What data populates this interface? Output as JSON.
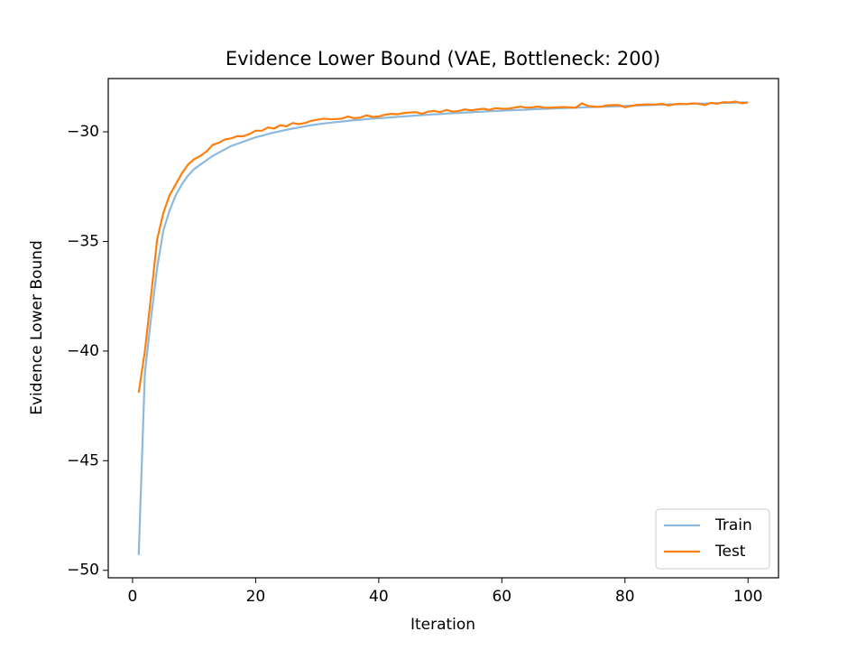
{
  "chart_data": {
    "type": "line",
    "title": "Evidence Lower Bound (VAE, Bottleneck: 200)",
    "x_label": "Iteration",
    "y_label": "Evidence Lower Bound",
    "x": [
      1,
      2,
      3,
      4,
      5,
      6,
      7,
      8,
      9,
      10,
      11,
      12,
      13,
      14,
      15,
      16,
      17,
      18,
      19,
      20,
      21,
      22,
      23,
      24,
      25,
      26,
      27,
      28,
      29,
      30,
      31,
      32,
      33,
      34,
      35,
      36,
      37,
      38,
      39,
      40,
      41,
      42,
      43,
      44,
      45,
      46,
      47,
      48,
      49,
      50,
      51,
      52,
      53,
      54,
      55,
      56,
      57,
      58,
      59,
      60,
      61,
      62,
      63,
      64,
      65,
      66,
      67,
      68,
      69,
      70,
      71,
      72,
      73,
      74,
      75,
      76,
      77,
      78,
      79,
      80,
      81,
      82,
      83,
      84,
      85,
      86,
      87,
      88,
      89,
      90,
      91,
      92,
      93,
      94,
      95,
      96,
      97,
      98,
      99,
      100
    ],
    "series": [
      {
        "name": "Train",
        "color": "#8cb9dc",
        "values": [
          -49.3,
          -41.0,
          -38.5,
          -36.2,
          -34.5,
          -33.6,
          -32.9,
          -32.4,
          -32.0,
          -31.7,
          -31.5,
          -31.3,
          -31.1,
          -30.95,
          -30.8,
          -30.65,
          -30.55,
          -30.45,
          -30.35,
          -30.25,
          -30.18,
          -30.1,
          -30.03,
          -29.97,
          -29.91,
          -29.85,
          -29.8,
          -29.75,
          -29.7,
          -29.66,
          -29.62,
          -29.59,
          -29.56,
          -29.53,
          -29.5,
          -29.47,
          -29.45,
          -29.42,
          -29.4,
          -29.38,
          -29.36,
          -29.34,
          -29.32,
          -29.3,
          -29.28,
          -29.26,
          -29.24,
          -29.22,
          -29.2,
          -29.19,
          -29.17,
          -29.15,
          -29.14,
          -29.12,
          -29.11,
          -29.09,
          -29.08,
          -29.06,
          -29.05,
          -29.04,
          -29.02,
          -29.01,
          -29.0,
          -28.99,
          -28.97,
          -28.96,
          -28.95,
          -28.94,
          -28.93,
          -28.92,
          -28.91,
          -28.9,
          -28.89,
          -28.88,
          -28.87,
          -28.86,
          -28.85,
          -28.84,
          -28.83,
          -28.82,
          -28.81,
          -28.8,
          -28.79,
          -28.78,
          -28.77,
          -28.76,
          -28.75,
          -28.75,
          -28.74,
          -28.73,
          -28.72,
          -28.71,
          -28.71,
          -28.7,
          -28.69,
          -28.68,
          -28.68,
          -28.67,
          -28.66,
          -28.66
        ]
      },
      {
        "name": "Test",
        "color": "#ff7f0e",
        "values": [
          -41.9,
          -40.0,
          -37.5,
          -34.9,
          -33.7,
          -32.9,
          -32.4,
          -31.9,
          -31.5,
          -31.25,
          -31.1,
          -30.9,
          -30.6,
          -30.5,
          -30.35,
          -30.3,
          -30.2,
          -30.2,
          -30.1,
          -29.95,
          -29.95,
          -29.8,
          -29.85,
          -29.7,
          -29.75,
          -29.6,
          -29.65,
          -29.6,
          -29.5,
          -29.45,
          -29.4,
          -29.42,
          -29.42,
          -29.4,
          -29.3,
          -29.38,
          -29.35,
          -29.25,
          -29.32,
          -29.3,
          -29.22,
          -29.18,
          -29.2,
          -29.15,
          -29.12,
          -29.1,
          -29.18,
          -29.08,
          -29.05,
          -29.1,
          -29.0,
          -29.08,
          -29.05,
          -28.98,
          -29.02,
          -28.98,
          -28.95,
          -29.0,
          -28.92,
          -28.95,
          -28.95,
          -28.9,
          -28.85,
          -28.9,
          -28.88,
          -28.85,
          -28.9,
          -28.9,
          -28.88,
          -28.87,
          -28.88,
          -28.9,
          -28.7,
          -28.82,
          -28.85,
          -28.86,
          -28.8,
          -28.78,
          -28.78,
          -28.88,
          -28.82,
          -28.77,
          -28.76,
          -28.75,
          -28.76,
          -28.72,
          -28.8,
          -28.74,
          -28.72,
          -28.74,
          -28.7,
          -28.72,
          -28.78,
          -28.68,
          -28.72,
          -28.65,
          -28.66,
          -28.62,
          -28.7,
          -28.66
        ]
      }
    ],
    "xlim": [
      -3.95,
      104.95
    ],
    "ylim": [
      -50.34,
      -27.57
    ],
    "xticks": [
      0,
      20,
      40,
      60,
      80,
      100
    ],
    "yticks": [
      {
        "value": -50,
        "label": "−50"
      },
      {
        "value": -45,
        "label": "−45"
      },
      {
        "value": -40,
        "label": "−40"
      },
      {
        "value": -35,
        "label": "−35"
      },
      {
        "value": -30,
        "label": "−30"
      }
    ],
    "legend": "lower right"
  }
}
